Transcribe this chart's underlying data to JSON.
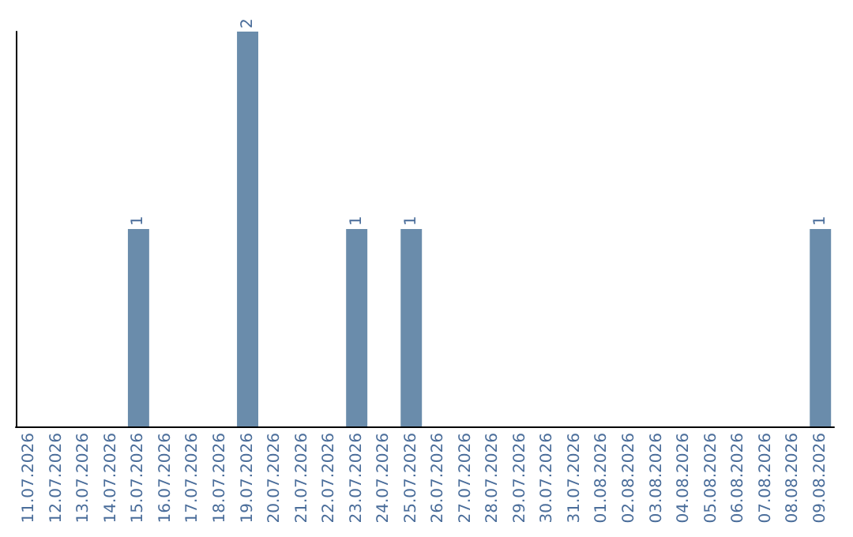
{
  "chart_data": {
    "type": "bar",
    "categories": [
      "11.07.2026",
      "12.07.2026",
      "13.07.2026",
      "14.07.2026",
      "15.07.2026",
      "16.07.2026",
      "17.07.2026",
      "18.07.2026",
      "19.07.2026",
      "20.07.2026",
      "21.07.2026",
      "22.07.2026",
      "23.07.2026",
      "24.07.2026",
      "25.07.2026",
      "26.07.2026",
      "27.07.2026",
      "28.07.2026",
      "29.07.2026",
      "30.07.2026",
      "31.07.2026",
      "01.08.2026",
      "02.08.2026",
      "03.08.2026",
      "04.08.2026",
      "05.08.2026",
      "06.08.2026",
      "07.08.2026",
      "08.08.2026",
      "09.08.2026"
    ],
    "values": [
      0,
      0,
      0,
      0,
      1,
      0,
      0,
      0,
      2,
      0,
      0,
      0,
      1,
      0,
      1,
      0,
      0,
      0,
      0,
      0,
      0,
      0,
      0,
      0,
      0,
      0,
      0,
      0,
      0,
      1
    ],
    "value_labels": [
      null,
      null,
      null,
      null,
      "1",
      null,
      null,
      null,
      "2",
      null,
      null,
      null,
      "1",
      null,
      "1",
      null,
      null,
      null,
      null,
      null,
      null,
      null,
      null,
      null,
      null,
      null,
      null,
      null,
      null,
      "1"
    ],
    "color": "#6a8cab",
    "tick_labels": "x"
  }
}
